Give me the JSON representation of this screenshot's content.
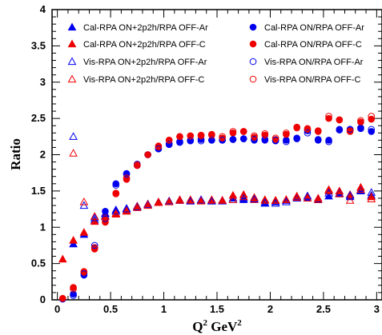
{
  "chart_data": {
    "type": "scatter",
    "title": "",
    "xlabel": "Q",
    "xlabel_sup": "2",
    "xlabel_unit": " GeV",
    "xlabel_unit_sup": "2",
    "ylabel": "Ratio",
    "xlim": [
      -0.05,
      3.05
    ],
    "ylim": [
      0,
      4
    ],
    "xticks": [
      0,
      0.5,
      1,
      1.5,
      2,
      2.5,
      3
    ],
    "xtick_labels": [
      "0",
      "0.5",
      "1",
      "1.5",
      "2",
      "2.5",
      "3"
    ],
    "yticks": [
      0,
      0.5,
      1,
      1.5,
      2,
      2.5,
      3,
      3.5,
      4
    ],
    "ytick_labels": [
      "0",
      "0.5",
      "1",
      "1.5",
      "2",
      "2.5",
      "3",
      "3.5",
      "4"
    ],
    "grid": false,
    "legend_placement": "top",
    "colors": {
      "ar": "#0000ee",
      "c": "#ee0000"
    },
    "series": [
      {
        "name": "Cal-RPA ON+2p2h/RPA OFF-Ar",
        "marker": "triangle",
        "filled": true,
        "color": "#0000ee",
        "x": [
          0.15,
          0.25,
          0.35,
          0.45,
          0.55,
          0.65,
          0.75,
          0.85,
          0.95,
          1.05,
          1.15,
          1.25,
          1.35,
          1.45,
          1.55,
          1.65,
          1.75,
          1.85,
          1.95,
          2.05,
          2.15,
          2.25,
          2.35,
          2.45,
          2.55,
          2.65,
          2.75,
          2.85,
          2.95
        ],
        "y": [
          0.77,
          0.9,
          1.1,
          1.19,
          1.24,
          1.26,
          1.29,
          1.32,
          1.34,
          1.36,
          1.37,
          1.37,
          1.38,
          1.37,
          1.36,
          1.4,
          1.38,
          1.39,
          1.33,
          1.35,
          1.37,
          1.42,
          1.4,
          1.38,
          1.43,
          1.46,
          1.42,
          1.5,
          1.44
        ]
      },
      {
        "name": "Cal-RPA ON+2p2h/RPA OFF-C",
        "marker": "triangle",
        "filled": true,
        "color": "#ee0000",
        "x": [
          0.05,
          0.15,
          0.25,
          0.35,
          0.45,
          0.55,
          0.65,
          0.75,
          0.85,
          0.95,
          1.05,
          1.15,
          1.25,
          1.35,
          1.45,
          1.55,
          1.65,
          1.75,
          1.85,
          1.95,
          2.05,
          2.15,
          2.25,
          2.35,
          2.45,
          2.55,
          2.65,
          2.75,
          2.85,
          2.95
        ],
        "y": [
          0.56,
          0.82,
          0.93,
          1.08,
          1.16,
          1.19,
          1.23,
          1.29,
          1.32,
          1.35,
          1.36,
          1.38,
          1.36,
          1.37,
          1.36,
          1.37,
          1.44,
          1.45,
          1.38,
          1.38,
          1.37,
          1.38,
          1.43,
          1.43,
          1.4,
          1.5,
          1.5,
          1.45,
          1.55,
          1.42
        ]
      },
      {
        "name": "Vis-RPA ON+2p2h/RPA OFF-Ar",
        "marker": "triangle",
        "filled": false,
        "color": "#0000ee",
        "x": [
          0.15,
          0.25,
          0.35,
          0.45,
          0.55,
          0.65,
          0.75,
          0.85,
          0.95,
          1.05,
          1.15,
          1.25,
          1.35,
          1.45,
          1.55,
          1.65,
          1.75,
          1.85,
          1.95,
          2.05,
          2.15,
          2.25,
          2.35,
          2.45,
          2.55,
          2.65,
          2.75,
          2.85,
          2.95
        ],
        "y": [
          2.25,
          1.3,
          1.13,
          1.19,
          1.22,
          1.25,
          1.28,
          1.31,
          1.34,
          1.36,
          1.37,
          1.36,
          1.37,
          1.36,
          1.37,
          1.38,
          1.4,
          1.39,
          1.34,
          1.33,
          1.35,
          1.4,
          1.43,
          1.38,
          1.47,
          1.47,
          1.44,
          1.51,
          1.48
        ]
      },
      {
        "name": "Vis-RPA ON+2p2h/RPA OFF-C",
        "marker": "triangle",
        "filled": false,
        "color": "#ee0000",
        "x": [
          0.15,
          0.25,
          0.35,
          0.45,
          0.55,
          0.65,
          0.75,
          0.85,
          0.95,
          1.05,
          1.15,
          1.25,
          1.35,
          1.45,
          1.55,
          1.65,
          1.75,
          1.85,
          1.95,
          2.05,
          2.15,
          2.25,
          2.35,
          2.45,
          2.55,
          2.65,
          2.75,
          2.85,
          2.95
        ],
        "y": [
          2.02,
          1.35,
          1.15,
          1.15,
          1.18,
          1.22,
          1.27,
          1.3,
          1.34,
          1.35,
          1.37,
          1.38,
          1.36,
          1.38,
          1.37,
          1.38,
          1.42,
          1.41,
          1.37,
          1.37,
          1.38,
          1.41,
          1.4,
          1.38,
          1.52,
          1.46,
          1.37,
          1.52,
          1.39
        ]
      },
      {
        "name": "Cal-RPA ON/RPA OFF-Ar",
        "marker": "circle",
        "filled": true,
        "color": "#0000ee",
        "x": [
          0.05,
          0.15,
          0.25,
          0.35,
          0.45,
          0.55,
          0.65,
          0.75,
          0.85,
          0.95,
          1.05,
          1.15,
          1.25,
          1.35,
          1.45,
          1.55,
          1.65,
          1.75,
          1.85,
          1.95,
          2.05,
          2.15,
          2.25,
          2.35,
          2.45,
          2.55,
          2.65,
          2.75,
          2.85,
          2.95
        ],
        "y": [
          0.01,
          0.08,
          0.34,
          0.72,
          1.22,
          1.6,
          1.74,
          1.87,
          2.0,
          2.08,
          2.15,
          2.18,
          2.2,
          2.21,
          2.2,
          2.2,
          2.21,
          2.22,
          2.2,
          2.2,
          2.19,
          2.2,
          2.22,
          2.33,
          2.2,
          2.2,
          2.35,
          2.35,
          2.37,
          2.32
        ]
      },
      {
        "name": "Cal-RPA ON/RPA OFF-C",
        "marker": "circle",
        "filled": true,
        "color": "#ee0000",
        "x": [
          0.05,
          0.15,
          0.25,
          0.35,
          0.45,
          0.55,
          0.65,
          0.75,
          0.85,
          0.95,
          1.05,
          1.15,
          1.25,
          1.35,
          1.45,
          1.55,
          1.65,
          1.75,
          1.85,
          1.95,
          2.05,
          2.15,
          2.25,
          2.35,
          2.45,
          2.55,
          2.65,
          2.75,
          2.85,
          2.95
        ],
        "y": [
          0.02,
          0.17,
          0.38,
          0.7,
          1.07,
          1.47,
          1.66,
          1.85,
          2.0,
          2.12,
          2.2,
          2.25,
          2.26,
          2.26,
          2.28,
          2.23,
          2.3,
          2.32,
          2.24,
          2.27,
          2.21,
          2.28,
          2.38,
          2.35,
          2.33,
          2.5,
          2.48,
          2.32,
          2.45,
          2.49
        ]
      },
      {
        "name": "Vis-RPA ON/RPA OFF-Ar",
        "marker": "circle",
        "filled": false,
        "color": "#0000ee",
        "x": [
          0.15,
          0.25,
          0.35,
          0.45,
          0.55,
          0.65,
          0.75,
          0.85,
          0.95,
          1.05,
          1.15,
          1.25,
          1.35,
          1.45,
          1.55,
          1.65,
          1.75,
          1.85,
          1.95,
          2.05,
          2.15,
          2.25,
          2.35,
          2.45,
          2.55,
          2.65,
          2.75,
          2.85,
          2.95
        ],
        "y": [
          0.06,
          0.36,
          0.75,
          1.12,
          1.58,
          1.73,
          1.86,
          2.0,
          2.08,
          2.14,
          2.17,
          2.19,
          2.19,
          2.2,
          2.2,
          2.21,
          2.22,
          2.21,
          2.21,
          2.2,
          2.18,
          2.23,
          2.3,
          2.21,
          2.18,
          2.34,
          2.35,
          2.36,
          2.35
        ]
      },
      {
        "name": "Vis-RPA ON/RPA OFF-C",
        "marker": "circle",
        "filled": false,
        "color": "#ee0000",
        "x": [
          0.15,
          0.25,
          0.35,
          0.45,
          0.55,
          0.65,
          0.75,
          0.85,
          0.95,
          1.05,
          1.15,
          1.25,
          1.35,
          1.45,
          1.55,
          1.65,
          1.75,
          1.85,
          1.95,
          2.05,
          2.15,
          2.25,
          2.35,
          2.45,
          2.55,
          2.65,
          2.75,
          2.85,
          2.95
        ],
        "y": [
          0.15,
          0.39,
          0.72,
          1.1,
          1.46,
          1.68,
          1.86,
          2.0,
          2.11,
          2.2,
          2.25,
          2.26,
          2.27,
          2.27,
          2.25,
          2.32,
          2.32,
          2.26,
          2.29,
          2.23,
          2.3,
          2.37,
          2.36,
          2.32,
          2.53,
          2.48,
          2.33,
          2.47,
          2.53
        ]
      }
    ]
  }
}
